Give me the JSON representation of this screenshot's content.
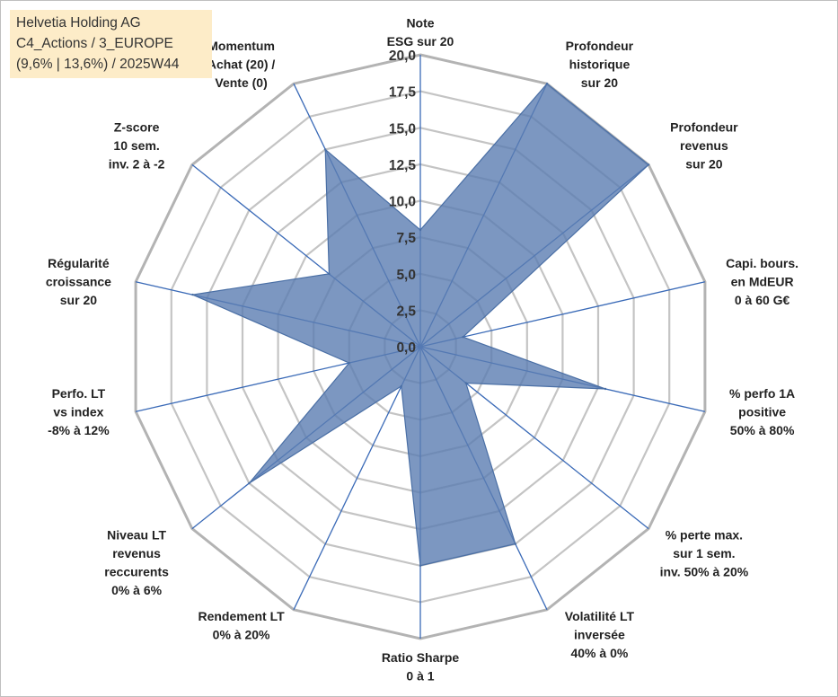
{
  "info_box": {
    "company": "Helvetia Holding AG",
    "category": "C4_Actions / 3_EUROPE",
    "period": "(9,6% | 13,6%) / 2025W44"
  },
  "chart_data": {
    "type": "radar",
    "title": "",
    "rmin": 0,
    "rmax": 20,
    "tick_values": [
      0,
      2.5,
      5,
      7.5,
      10,
      12.5,
      15,
      17.5,
      20
    ],
    "tick_labels": [
      "0,0",
      "2,5",
      "5,0",
      "7,5",
      "10,0",
      "12,5",
      "15,0",
      "17,5",
      "20,0"
    ],
    "grid": true,
    "axes": [
      {
        "lines": [
          "Note",
          "ESG sur 20"
        ]
      },
      {
        "lines": [
          "Profondeur",
          "historique",
          "sur 20"
        ]
      },
      {
        "lines": [
          "Profondeur",
          "revenus",
          "sur 20"
        ]
      },
      {
        "lines": [
          "Capi. bours.",
          "en MdEUR",
          "0 à 60 G€"
        ]
      },
      {
        "lines": [
          "% perfo 1A",
          "positive",
          "50% à 80%"
        ]
      },
      {
        "lines": [
          "% perte max.",
          "sur 1 sem.",
          "inv. 50% à 20%"
        ]
      },
      {
        "lines": [
          "Volatilité LT",
          "inversée",
          "40% à 0%"
        ]
      },
      {
        "lines": [
          "Ratio Sharpe",
          "0 à 1"
        ]
      },
      {
        "lines": [
          "Rendement LT",
          "0% à 20%"
        ]
      },
      {
        "lines": [
          "Niveau LT",
          "revenus",
          "reccurents",
          "0% à 6%"
        ]
      },
      {
        "lines": [
          "Perfo. LT",
          "vs index",
          "-8% à 12%"
        ]
      },
      {
        "lines": [
          "Régularité",
          "croissance",
          "sur 20"
        ]
      },
      {
        "lines": [
          "Z-score",
          "10 sem.",
          "inv. 2 à -2"
        ]
      },
      {
        "lines": [
          "Momentum",
          "Achat (20) /",
          "Vente (0)"
        ]
      }
    ],
    "series": [
      {
        "values": [
          8.0,
          20.0,
          20.0,
          3.0,
          13.0,
          4.0,
          15.0,
          15.0,
          3.0,
          15.0,
          5.0,
          16.0,
          8.0,
          15.0
        ]
      }
    ],
    "colors": {
      "fill": "#5b7db1",
      "stroke": "#4a6fa5",
      "spoke": "#3a6ab7",
      "grid": "#c4c4c4",
      "outer": "#b3b3b3"
    }
  }
}
